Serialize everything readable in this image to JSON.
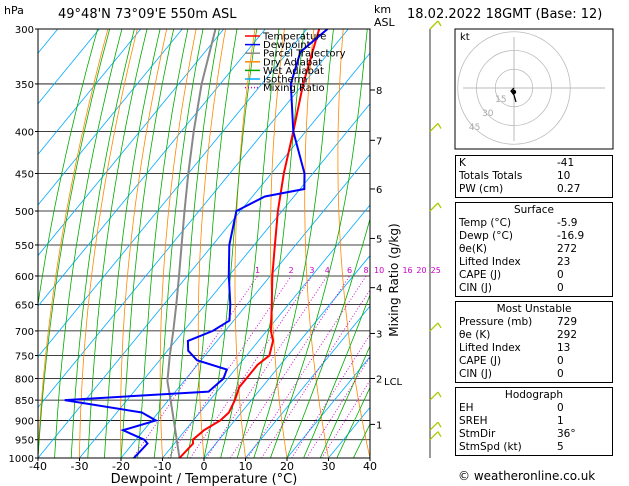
{
  "header": {
    "hpa_label": "hPa",
    "location": "49°48'N 73°09'E 550m ASL",
    "km_label": "km",
    "asl_label": "ASL",
    "datetime": "18.02.2022 18GMT (Base: 12)"
  },
  "legend": [
    {
      "label": "Temperature",
      "color": "#ff0000",
      "dash": "solid"
    },
    {
      "label": "Dewpoint",
      "color": "#0000ff",
      "dash": "solid"
    },
    {
      "label": "Parcel Trajectory",
      "color": "#888888",
      "dash": "solid"
    },
    {
      "label": "Dry Adiabat",
      "color": "#ff8800",
      "dash": "solid"
    },
    {
      "label": "Wet Adiabat",
      "color": "#00aa00",
      "dash": "solid"
    },
    {
      "label": "Isotherm",
      "color": "#00aaff",
      "dash": "solid"
    },
    {
      "label": "Mixing Ratio",
      "color": "#cc00cc",
      "dash": "dotted"
    }
  ],
  "colors": {
    "temperature": "#ff0000",
    "dewpoint": "#0000ff",
    "parcel": "#888888",
    "dry_adiabat": "#ff8800",
    "wet_adiabat": "#00aa00",
    "isotherm": "#00aaff",
    "mixing_ratio": "#cc00cc",
    "wind": "#aacc00"
  },
  "chart_data": {
    "type": "skew-t",
    "xlabel": "Dewpoint / Temperature (°C)",
    "ylabel_right": "Mixing Ratio (g/kg)",
    "pressure_ticks": [
      300,
      350,
      400,
      450,
      500,
      550,
      600,
      650,
      700,
      750,
      800,
      850,
      900,
      950,
      1000
    ],
    "pressure_tick_labels": [
      "300",
      "350",
      "400",
      "450",
      "500",
      "550",
      "600",
      "650",
      "700",
      "750",
      "800",
      "850",
      "900",
      "950",
      "1000"
    ],
    "temp_ticks": [
      -40,
      -30,
      -20,
      -10,
      0,
      10,
      20,
      30,
      40
    ],
    "temp_tick_labels": [
      "-40",
      "-30",
      "-20",
      "-10",
      "0",
      "10",
      "20",
      "30",
      "40"
    ],
    "xlim": [
      -40,
      40
    ],
    "ylim": [
      1000,
      300
    ],
    "km_ticks": [
      {
        "label": "8",
        "p": 356
      },
      {
        "label": "7",
        "p": 410
      },
      {
        "label": "6",
        "p": 470
      },
      {
        "label": "5",
        "p": 540
      },
      {
        "label": "4",
        "p": 620
      },
      {
        "label": "3",
        "p": 705
      },
      {
        "label": "2",
        "p": 800
      },
      {
        "label": "1",
        "p": 910
      }
    ],
    "lcl": {
      "label": "LCL",
      "p": 806
    },
    "mixing_ratio_labels": [
      "1",
      "2",
      "3",
      "4",
      "6",
      "8",
      "10",
      "16",
      "20",
      "25"
    ],
    "mixing_ratio_values": [
      1,
      2,
      3,
      4,
      6,
      8,
      10,
      16,
      20,
      25
    ],
    "temperature": {
      "p": [
        1000,
        960,
        950,
        925,
        900,
        880,
        850,
        820,
        800,
        770,
        750,
        720,
        700,
        650,
        600,
        550,
        500,
        450,
        400,
        350,
        300
      ],
      "t": [
        -5.9,
        -5.5,
        -6.3,
        -5.5,
        -3.5,
        -3.0,
        -4.0,
        -5.5,
        -5.5,
        -5.5,
        -4.5,
        -6.5,
        -9,
        -14,
        -19.5,
        -25,
        -31,
        -37,
        -43,
        -50,
        -57
      ]
    },
    "dewpoint": {
      "p": [
        1000,
        960,
        950,
        925,
        900,
        880,
        850,
        830,
        800,
        780,
        760,
        740,
        720,
        700,
        680,
        650,
        600,
        550,
        500,
        480,
        470,
        450,
        400,
        350,
        320,
        300
      ],
      "td": [
        -16.9,
        -16.5,
        -18,
        -25,
        -19,
        -24,
        -45,
        -12,
        -11,
        -12,
        -21,
        -25,
        -27,
        -23,
        -21,
        -24,
        -30,
        -36,
        -41,
        -37,
        -29,
        -32,
        -43,
        -53,
        -57,
        -55
      ]
    },
    "parcel": {
      "p": [
        1000,
        950,
        900,
        850,
        806,
        750,
        700,
        650,
        600,
        550,
        500,
        450,
        400,
        350,
        300
      ],
      "t": [
        -5.9,
        -10.2,
        -14.7,
        -19.5,
        -24.0,
        -28.5,
        -32.5,
        -37,
        -42,
        -47.5,
        -53.5,
        -60,
        -67,
        -74.5,
        -82
      ]
    },
    "wind_barbs": [
      {
        "p": 300,
        "kind": "pennant"
      },
      {
        "p": 400,
        "kind": "barb"
      },
      {
        "p": 500,
        "kind": "barb"
      },
      {
        "p": 700,
        "kind": "barb"
      },
      {
        "p": 850,
        "kind": "barb"
      },
      {
        "p": 925,
        "kind": "barb"
      },
      {
        "p": 950,
        "kind": "barb"
      }
    ]
  },
  "hodograph": {
    "label": "kt",
    "ring_labels": [
      "45",
      "30",
      "15"
    ]
  },
  "indices": {
    "basic": [
      {
        "label": "K",
        "value": "-41"
      },
      {
        "label": "Totals Totals",
        "value": "10"
      },
      {
        "label": "PW (cm)",
        "value": "0.27"
      }
    ],
    "surface": {
      "title": "Surface",
      "rows": [
        {
          "label": "Temp (°C)",
          "value": "-5.9"
        },
        {
          "label": "Dewp (°C)",
          "value": "-16.9"
        },
        {
          "label": "θe(K)",
          "value": "272"
        },
        {
          "label": "Lifted Index",
          "value": "23"
        },
        {
          "label": "CAPE (J)",
          "value": "0"
        },
        {
          "label": "CIN (J)",
          "value": "0"
        }
      ]
    },
    "most_unstable": {
      "title": "Most Unstable",
      "rows": [
        {
          "label": "Pressure (mb)",
          "value": "729"
        },
        {
          "label": "θe (K)",
          "value": "292"
        },
        {
          "label": "Lifted Index",
          "value": "13"
        },
        {
          "label": "CAPE (J)",
          "value": "0"
        },
        {
          "label": "CIN (J)",
          "value": "0"
        }
      ]
    },
    "hodograph": {
      "title": "Hodograph",
      "rows": [
        {
          "label": "EH",
          "value": "0"
        },
        {
          "label": "SREH",
          "value": "1"
        },
        {
          "label": "StmDir",
          "value": "36°"
        },
        {
          "label": "StmSpd (kt)",
          "value": "5"
        }
      ]
    }
  },
  "footer": "© weatheronline.co.uk"
}
